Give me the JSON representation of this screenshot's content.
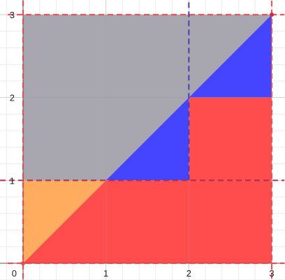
{
  "chart_data": {
    "type": "area",
    "title": "",
    "xlabel": "",
    "ylabel": "",
    "xlim": [
      0,
      3
    ],
    "ylim": [
      0,
      3
    ],
    "grid": true,
    "x_ticks": [
      {
        "value": 0,
        "label": "0"
      },
      {
        "value": 1,
        "label": "1"
      },
      {
        "value": 2,
        "label": "2"
      },
      {
        "value": 3,
        "label": "3"
      }
    ],
    "y_ticks": [
      {
        "value": 1,
        "label": "1"
      },
      {
        "value": 2,
        "label": "2"
      },
      {
        "value": 3,
        "label": "3"
      }
    ],
    "regions": [
      {
        "name": "gray-region",
        "color": "#a5a4ad",
        "points": [
          [
            0,
            1
          ],
          [
            1,
            1
          ],
          [
            3,
            3
          ],
          [
            0,
            3
          ]
        ]
      },
      {
        "name": "blue-region",
        "color": "#3f3fff",
        "points": [
          [
            1,
            1
          ],
          [
            2,
            1
          ],
          [
            2,
            2
          ],
          [
            3,
            2
          ],
          [
            3,
            3
          ]
        ]
      },
      {
        "name": "orange-region",
        "color": "#ffa95a",
        "points": [
          [
            0,
            0
          ],
          [
            1,
            1
          ],
          [
            0,
            1
          ]
        ]
      },
      {
        "name": "red-region",
        "color": "#ff4646",
        "points": [
          [
            0,
            0
          ],
          [
            3,
            0
          ],
          [
            3,
            2
          ],
          [
            2,
            2
          ],
          [
            2,
            1
          ],
          [
            1,
            1
          ]
        ]
      }
    ],
    "boundaries": [
      {
        "name": "boundary-y-3",
        "color": "#e84a4a",
        "style": "dashed",
        "points": [
          [
            0,
            3
          ],
          [
            3,
            3
          ]
        ]
      },
      {
        "name": "boundary-y-0",
        "color": "#e84a4a",
        "style": "dashed",
        "points": [
          [
            0,
            0
          ],
          [
            3,
            0
          ]
        ]
      },
      {
        "name": "boundary-x-0",
        "color": "#e84a4a",
        "style": "dashed",
        "points": [
          [
            0,
            0
          ],
          [
            0,
            3
          ]
        ]
      },
      {
        "name": "boundary-x-3",
        "color": "#e84a4a",
        "style": "dashed",
        "points": [
          [
            3,
            0
          ],
          [
            3,
            3
          ]
        ]
      },
      {
        "name": "boundary-y-1",
        "color": "#b1284a",
        "style": "dashed",
        "points": [
          [
            0,
            1
          ],
          [
            3,
            1
          ]
        ]
      },
      {
        "name": "boundary-x-2",
        "color": "#4a3ab8",
        "style": "dashed",
        "points": [
          [
            2,
            1
          ],
          [
            2,
            3
          ]
        ]
      }
    ],
    "points": [
      {
        "name": "point-origin",
        "x": 0,
        "y": 0,
        "color": "#e84a4a"
      },
      {
        "name": "point-top-right",
        "x": 3,
        "y": 3,
        "color": "#d1284a"
      }
    ]
  }
}
